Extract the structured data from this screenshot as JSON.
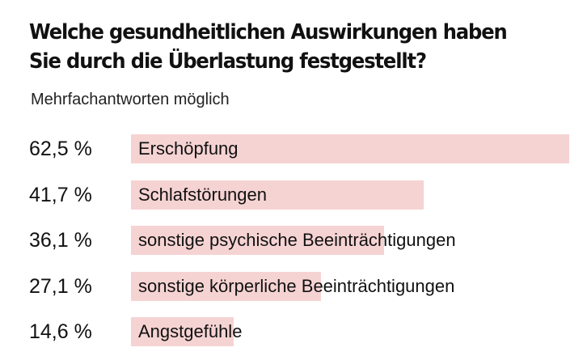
{
  "header": {
    "title_line1": "Welche gesundheitlichen Auswirkungen haben",
    "title_line2": "Sie durch die Überlastung festgestellt?",
    "subtitle": "Mehrfachantworten möglich"
  },
  "colors": {
    "bar": "#f6d3d3",
    "text": "#111111"
  },
  "chart_data": {
    "type": "bar",
    "orientation": "horizontal",
    "title": "Welche gesundheitlichen Auswirkungen haben Sie durch die Überlastung festgestellt?",
    "subtitle": "Mehrfachantworten möglich",
    "xlabel": "",
    "ylabel": "",
    "grid": false,
    "categories": [
      "Erschöpfung",
      "Schlafstörungen",
      "sonstige psychische Beeinträchtigungen",
      "sonstige körperliche Beeinträchtigungen",
      "Angstgefühle"
    ],
    "values": [
      62.5,
      41.7,
      36.1,
      27.1,
      14.6
    ],
    "value_labels": [
      "62,5 %",
      "41,7 %",
      "36,1 %",
      "27,1 %",
      "14,6 %"
    ],
    "xlim": [
      0,
      62.5
    ]
  }
}
